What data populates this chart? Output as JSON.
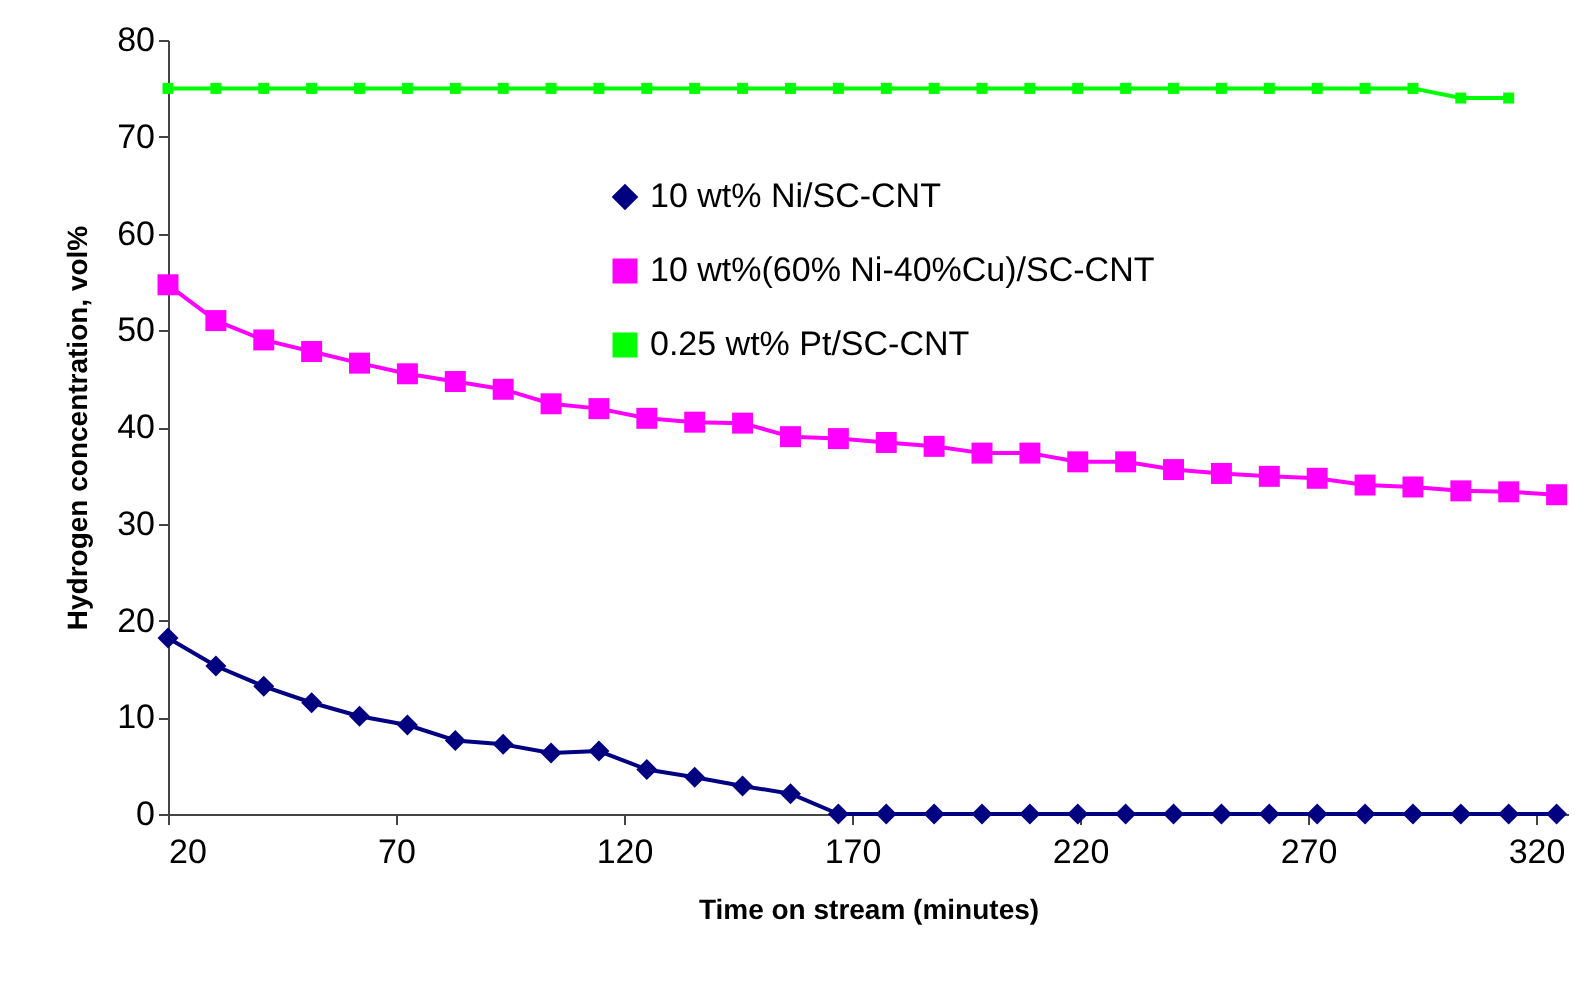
{
  "chart_data": {
    "type": "line",
    "xlabel": "Time on stream (minutes)",
    "ylabel": "Hydrogen concentration, vol%",
    "x": [
      20,
      30.5,
      41,
      51.5,
      62,
      72.5,
      83,
      93.5,
      104,
      114.5,
      125,
      135.5,
      146,
      156.5,
      167,
      177.5,
      188,
      198.5,
      209,
      219.5,
      230,
      240.5,
      251,
      261.5,
      272,
      282.5,
      293,
      303.5,
      314,
      324.5
    ],
    "series": [
      {
        "name": "10 wt% Ni/SC-CNT",
        "color": "#000080",
        "marker": "diamond",
        "values": [
          18.2,
          15.3,
          13.2,
          11.5,
          10.1,
          9.2,
          7.6,
          7.2,
          6.3,
          6.5,
          4.6,
          3.8,
          2.9,
          2.1,
          0,
          0,
          0,
          0,
          0,
          0,
          0,
          0,
          0,
          0,
          0,
          0,
          0,
          0,
          0,
          0
        ]
      },
      {
        "name": "10 wt%(60% Ni-40%Cu)/SC-CNT",
        "color": "#ff00ff",
        "marker": "square",
        "values": [
          54.7,
          51.0,
          49.0,
          47.8,
          46.6,
          45.5,
          44.7,
          43.9,
          42.4,
          41.9,
          40.9,
          40.5,
          40.4,
          39.0,
          38.8,
          38.4,
          38.0,
          37.3,
          37.3,
          36.4,
          36.4,
          35.6,
          35.2,
          34.9,
          34.7,
          34.0,
          33.8,
          33.4,
          33.3,
          33.0
        ]
      },
      {
        "name": "0.25 wt% Pt/SC-CNT",
        "color": "#00ff00",
        "marker": "square",
        "x": [
          20,
          30.5,
          41,
          51.5,
          62,
          72.5,
          83,
          93.5,
          104,
          114.5,
          125,
          135.5,
          146,
          156.5,
          167,
          177.5,
          188,
          198.5,
          209,
          219.5,
          230,
          240.5,
          251,
          261.5,
          272,
          282.5,
          293,
          303.5,
          314
        ],
        "values": [
          75,
          75,
          75,
          75,
          75,
          75,
          75,
          75,
          75,
          75,
          75,
          75,
          75,
          75,
          75,
          75,
          75,
          75,
          75,
          75,
          75,
          75,
          75,
          75,
          75,
          75,
          75,
          74,
          74
        ]
      }
    ],
    "xlim": [
      20,
      327
    ],
    "xticks": [
      20,
      70,
      120,
      170,
      220,
      270,
      320
    ],
    "ylim": [
      0,
      80
    ],
    "yticks": [
      0,
      10,
      20,
      30,
      40,
      50,
      60,
      70,
      80
    ],
    "grid": false,
    "legend": "top right",
    "line_style": "solid"
  }
}
